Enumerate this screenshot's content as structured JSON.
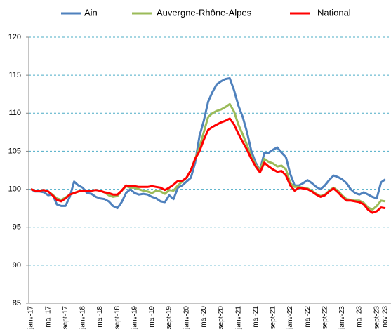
{
  "chart_data": {
    "type": "line",
    "categories": [
      "janv-17",
      null,
      null,
      null,
      "mai-17",
      null,
      null,
      null,
      "sept-17",
      null,
      null,
      null,
      "janv-18",
      null,
      null,
      null,
      "mai-18",
      null,
      null,
      null,
      "sept-18",
      null,
      null,
      null,
      "janv-19",
      null,
      null,
      null,
      "mai-19",
      null,
      null,
      null,
      "sept-19",
      null,
      null,
      null,
      "janv-20",
      null,
      null,
      null,
      "mai-20",
      null,
      null,
      null,
      "sept-20",
      null,
      null,
      null,
      "janv-21",
      null,
      null,
      null,
      "mai-21",
      null,
      null,
      null,
      "sept-21",
      null,
      null,
      null,
      "janv-22",
      null,
      null,
      null,
      "mai-22",
      null,
      null,
      null,
      "sept-22",
      null,
      null,
      null,
      "janv-23",
      null,
      null,
      null,
      "mai-23",
      null,
      null,
      null,
      "sept-23",
      null,
      "nov-23"
    ],
    "series": [
      {
        "name": "Ain",
        "color": "#4f81bd",
        "values": [
          100,
          99.7,
          99.7,
          99.6,
          99.2,
          99.3,
          98,
          97.8,
          97.8,
          99,
          101,
          100.5,
          100.2,
          99.5,
          99.4,
          99,
          98.8,
          98.7,
          98.4,
          97.8,
          97.5,
          98.3,
          99.5,
          100,
          99.5,
          99.3,
          99.4,
          99.3,
          99,
          98.8,
          98.4,
          98.3,
          99.2,
          98.7,
          100.2,
          100.5,
          101,
          101.5,
          103.5,
          107,
          109,
          111.5,
          112.8,
          113.8,
          114.2,
          114.5,
          114.6,
          113,
          111,
          109.5,
          107.5,
          105,
          103.5,
          102.5,
          104.8,
          104.8,
          105.2,
          105.5,
          104.8,
          104.2,
          102,
          100.5,
          100.5,
          100.8,
          101.2,
          100.8,
          100.3,
          100,
          100.5,
          101.2,
          101.8,
          101.6,
          101.3,
          100.8,
          100,
          99.5,
          99.3,
          99.6,
          99.3,
          99,
          98.8,
          100.9,
          101.3
        ]
      },
      {
        "name": "Auvergne-Rhône-Alpes",
        "color": "#9bbb59",
        "values": [
          100,
          99.8,
          99.8,
          99.9,
          99.7,
          99.3,
          98.8,
          98.6,
          98.9,
          99.3,
          99.5,
          99.7,
          99.8,
          99.8,
          99.8,
          99.9,
          99.8,
          99.6,
          99.2,
          99,
          99.1,
          99.8,
          100.4,
          100.2,
          100.2,
          100,
          99.8,
          99.7,
          99.5,
          99.8,
          99.7,
          99.4,
          99.9,
          99.8,
          100.5,
          101,
          101.5,
          102.5,
          104,
          105.5,
          107.5,
          109.5,
          110,
          110.3,
          110.5,
          110.8,
          111.2,
          110.2,
          108.5,
          107.2,
          105.8,
          104.3,
          103.2,
          102.5,
          104,
          103.6,
          103.4,
          103,
          103.1,
          102.6,
          100.8,
          100.3,
          100.3,
          100.2,
          100.1,
          99.8,
          99.4,
          99.1,
          99.3,
          99.8,
          100.2,
          99.8,
          99.2,
          98.7,
          98.6,
          98.5,
          98.5,
          98.2,
          97.6,
          97.3,
          97.8,
          98.5,
          98.4
        ]
      },
      {
        "name": "National",
        "color": "#ff0000",
        "values": [
          100,
          99.8,
          99.8,
          99.9,
          99.7,
          99.2,
          98.6,
          98.4,
          98.8,
          99.3,
          99.5,
          99.7,
          99.8,
          99.8,
          99.8,
          99.9,
          99.8,
          99.6,
          99.5,
          99.3,
          99.3,
          99.8,
          100.5,
          100.4,
          100.4,
          100.3,
          100.3,
          100.3,
          100.4,
          100.3,
          100.2,
          99.9,
          100.2,
          100.6,
          101.1,
          101.1,
          101.5,
          102.5,
          104,
          105,
          106.5,
          107.8,
          108.2,
          108.5,
          108.8,
          109,
          109.3,
          108.5,
          107.3,
          106.2,
          105.2,
          104,
          103,
          102.2,
          103.5,
          103,
          102.6,
          102.3,
          102.4,
          101.8,
          100.5,
          99.8,
          100.2,
          100.1,
          100,
          99.7,
          99.3,
          99,
          99.2,
          99.7,
          100.1,
          99.6,
          99,
          98.5,
          98.5,
          98.4,
          98.3,
          98,
          97.3,
          96.9,
          97.1,
          97.6,
          97.5
        ]
      }
    ],
    "ylim": [
      85,
      120
    ],
    "yticks": [
      85,
      90,
      95,
      100,
      105,
      110,
      115,
      120
    ],
    "grid": true,
    "legend": "top"
  }
}
